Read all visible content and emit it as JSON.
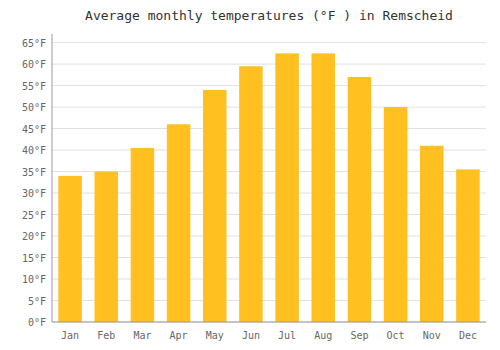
{
  "chart_data": {
    "type": "bar",
    "title": "Average monthly temperatures (°F ) in Remscheid",
    "categories": [
      "Jan",
      "Feb",
      "Mar",
      "Apr",
      "May",
      "Jun",
      "Jul",
      "Aug",
      "Sep",
      "Oct",
      "Nov",
      "Dec"
    ],
    "values": [
      34,
      35,
      40.5,
      46,
      54,
      59.5,
      62.5,
      62.5,
      57,
      50,
      41,
      35.5
    ],
    "color": "#FFC020",
    "ylim": [
      0,
      67
    ],
    "yticks": [
      {
        "value": 0,
        "label": "0°F"
      },
      {
        "value": 5,
        "label": "5°F"
      },
      {
        "value": 10,
        "label": "10°F"
      },
      {
        "value": 15,
        "label": "15°F"
      },
      {
        "value": 20,
        "label": "20°F"
      },
      {
        "value": 25,
        "label": "25°F"
      },
      {
        "value": 30,
        "label": "30°F"
      },
      {
        "value": 35,
        "label": "35°F"
      },
      {
        "value": 40,
        "label": "40°F"
      },
      {
        "value": 45,
        "label": "45°F"
      },
      {
        "value": 50,
        "label": "50°F"
      },
      {
        "value": 55,
        "label": "55°F"
      },
      {
        "value": 60,
        "label": "60°F"
      },
      {
        "value": 65,
        "label": "65°F"
      }
    ],
    "grid": true
  }
}
